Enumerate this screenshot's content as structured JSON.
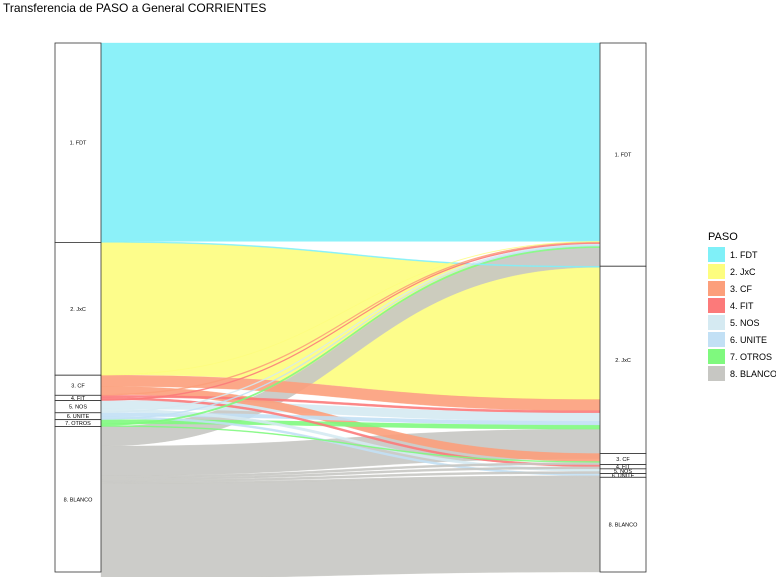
{
  "title": "Transferencia de PASO a General CORRIENTES",
  "legend": {
    "title": "PASO",
    "items": [
      {
        "label": "1. FDT",
        "color": "#7ff0f8"
      },
      {
        "label": "2. JxC",
        "color": "#fdfd7e"
      },
      {
        "label": "3. CF",
        "color": "#fc9f7b"
      },
      {
        "label": "4. FIT",
        "color": "#fc7a7a"
      },
      {
        "label": "5. NOS",
        "color": "#d5eaf2"
      },
      {
        "label": "6. UNITE",
        "color": "#c2e0f5"
      },
      {
        "label": "7. OTROS",
        "color": "#7ff97e"
      },
      {
        "label": "8. BLANCO",
        "color": "#c7c7c3"
      }
    ]
  },
  "chart_data": {
    "type": "alluvial",
    "title": "Transferencia de PASO a General CORRIENTES",
    "axes": [
      "PASO",
      "General"
    ],
    "left_nodes": [
      {
        "label": "1. FDT",
        "value": 37.7
      },
      {
        "label": "2. JxC",
        "value": 25.1
      },
      {
        "label": "3. CF",
        "value": 3.8
      },
      {
        "label": "4. FIT",
        "value": 1.0
      },
      {
        "label": "5. NOS",
        "value": 2.3
      },
      {
        "label": "6. UNITE",
        "value": 1.3
      },
      {
        "label": "7. OTROS",
        "value": 1.3
      },
      {
        "label": "8. BLANCO",
        "value": 27.5
      }
    ],
    "right_nodes": [
      {
        "label": "1. FDT",
        "value": 42.2
      },
      {
        "label": "2. JxC",
        "value": 35.4
      },
      {
        "label": "3. CF",
        "value": 2.1
      },
      {
        "label": "4. FIT",
        "value": 0.8
      },
      {
        "label": "5. NOS",
        "value": 0.9
      },
      {
        "label": "6. UNITE",
        "value": 0.7
      },
      {
        "label": "8. BLANCO",
        "value": 17.9
      }
    ],
    "flows": [
      {
        "from": "1. FDT",
        "to": "1. FDT",
        "value": 37.5
      },
      {
        "from": "1. FDT",
        "to": "2. JxC",
        "value": 0.2
      },
      {
        "from": "2. JxC",
        "to": "2. JxC",
        "value": 25.0
      },
      {
        "from": "2. JxC",
        "to": "1. FDT",
        "value": 0.1
      },
      {
        "from": "3. CF",
        "to": "2. JxC",
        "value": 2.1
      },
      {
        "from": "3. CF",
        "to": "3. CF",
        "value": 1.5
      },
      {
        "from": "3. CF",
        "to": "1. FDT",
        "value": 0.2
      },
      {
        "from": "4. FIT",
        "to": "2. JxC",
        "value": 0.4
      },
      {
        "from": "4. FIT",
        "to": "4. FIT",
        "value": 0.4
      },
      {
        "from": "4. FIT",
        "to": "1. FDT",
        "value": 0.2
      },
      {
        "from": "5. NOS",
        "to": "2. JxC",
        "value": 1.6
      },
      {
        "from": "5. NOS",
        "to": "5. NOS",
        "value": 0.5
      },
      {
        "from": "5. NOS",
        "to": "1. FDT",
        "value": 0.2
      },
      {
        "from": "6. UNITE",
        "to": "2. JxC",
        "value": 0.7
      },
      {
        "from": "6. UNITE",
        "to": "6. UNITE",
        "value": 0.4
      },
      {
        "from": "6. UNITE",
        "to": "1. FDT",
        "value": 0.2
      },
      {
        "from": "7. OTROS",
        "to": "2. JxC",
        "value": 0.8
      },
      {
        "from": "7. OTROS",
        "to": "1. FDT",
        "value": 0.3
      },
      {
        "from": "7. OTROS",
        "to": "3. CF",
        "value": 0.2
      },
      {
        "from": "8. BLANCO",
        "to": "1. FDT",
        "value": 3.7
      },
      {
        "from": "8. BLANCO",
        "to": "2. JxC",
        "value": 5.6
      },
      {
        "from": "8. BLANCO",
        "to": "3. CF",
        "value": 0.4
      },
      {
        "from": "8. BLANCO",
        "to": "4. FIT",
        "value": 0.4
      },
      {
        "from": "8. BLANCO",
        "to": "5. NOS",
        "value": 0.4
      },
      {
        "from": "8. BLANCO",
        "to": "6. UNITE",
        "value": 0.3
      },
      {
        "from": "8. BLANCO",
        "to": "8. BLANCO",
        "value": 17.9
      }
    ]
  }
}
